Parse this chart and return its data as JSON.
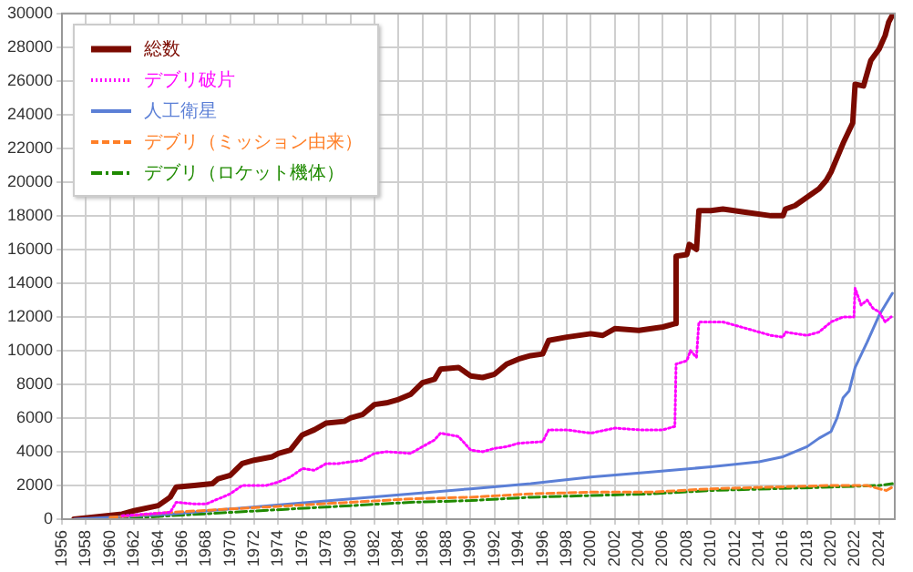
{
  "chart_data": {
    "type": "line",
    "xlim": [
      1956,
      2025.3
    ],
    "ylim": [
      0,
      30000
    ],
    "xticks": [
      1956,
      1958,
      1960,
      1962,
      1964,
      1966,
      1968,
      1970,
      1972,
      1974,
      1976,
      1978,
      1980,
      1982,
      1984,
      1986,
      1988,
      1990,
      1992,
      1994,
      1996,
      1998,
      2000,
      2002,
      2004,
      2006,
      2008,
      2010,
      2012,
      2014,
      2016,
      2018,
      2020,
      2022,
      2024
    ],
    "yticks": [
      0,
      2000,
      4000,
      6000,
      8000,
      10000,
      12000,
      14000,
      16000,
      18000,
      20000,
      22000,
      24000,
      26000,
      28000,
      30000
    ],
    "grid": true,
    "legend": "top left",
    "series": [
      {
        "name": "総数",
        "color": "#7b0a00",
        "line_style": "solid",
        "x": [
          1957,
          1961,
          1962,
          1964,
          1965,
          1965.5,
          1967,
          1968.5,
          1969,
          1970,
          1971,
          1972,
          1973.5,
          1974,
          1975,
          1976,
          1977,
          1978,
          1979.5,
          1980,
          1981,
          1982,
          1983,
          1984,
          1985,
          1986,
          1987,
          1987.5,
          1989,
          1990,
          1991,
          1992,
          1993,
          1994,
          1995,
          1996,
          1996.5,
          1998,
          2000,
          2001,
          2002,
          2004,
          2006,
          2007,
          2007.1,
          2008,
          2008.2,
          2008.8,
          2009,
          2010,
          2011,
          2013,
          2015,
          2016,
          2016.2,
          2017,
          2018,
          2019,
          2019.6,
          2020,
          2021,
          2021.8,
          2022,
          2022.7,
          2023.3,
          2024,
          2024.5,
          2024.8,
          2025.1
        ],
        "values": [
          0,
          300,
          500,
          800,
          1300,
          1900,
          2000,
          2100,
          2400,
          2600,
          3300,
          3500,
          3700,
          3900,
          4100,
          5000,
          5300,
          5700,
          5800,
          6000,
          6200,
          6800,
          6900,
          7100,
          7400,
          8100,
          8300,
          8900,
          9000,
          8500,
          8400,
          8600,
          9200,
          9500,
          9700,
          9800,
          10600,
          10800,
          11000,
          10900,
          11300,
          11200,
          11400,
          11600,
          15600,
          15700,
          16300,
          16000,
          18300,
          18300,
          18400,
          18200,
          18000,
          18000,
          18400,
          18600,
          19100,
          19600,
          20100,
          20600,
          22300,
          23500,
          25800,
          25700,
          27200,
          27900,
          28700,
          29500,
          29900
        ]
      },
      {
        "name": "デブリ破片",
        "color": "#ff00ff",
        "line_style": "dotted",
        "x": [
          1961,
          1965,
          1965.5,
          1967,
          1968,
          1969,
          1970,
          1971,
          1973,
          1974,
          1975,
          1976,
          1977,
          1978,
          1979,
          1980,
          1981,
          1982,
          1983,
          1985,
          1986,
          1987,
          1987.5,
          1989,
          1990,
          1991,
          1992,
          1993,
          1994,
          1996,
          1996.5,
          1998,
          2000,
          2002,
          2004,
          2006,
          2007,
          2007.1,
          2008,
          2008.3,
          2008.8,
          2009,
          2011,
          2013,
          2015,
          2016,
          2016.2,
          2018,
          2019,
          2020,
          2021,
          2021.9,
          2022,
          2022.5,
          2023,
          2023.5,
          2024,
          2024.5,
          2025
        ],
        "values": [
          200,
          400,
          1000,
          900,
          900,
          1200,
          1500,
          2000,
          2000,
          2200,
          2500,
          3000,
          2900,
          3300,
          3300,
          3400,
          3500,
          3900,
          4000,
          3900,
          4300,
          4700,
          5100,
          4900,
          4100,
          4000,
          4200,
          4300,
          4500,
          4600,
          5300,
          5300,
          5100,
          5400,
          5300,
          5300,
          5500,
          9200,
          9400,
          10000,
          9600,
          11700,
          11700,
          11300,
          10900,
          10800,
          11100,
          10900,
          11100,
          11700,
          12000,
          12000,
          13700,
          12700,
          13000,
          12500,
          12300,
          11700,
          12000
        ]
      },
      {
        "name": "人工衛星",
        "color": "#5b7fd6",
        "line_style": "solid",
        "x": [
          1957,
          1965,
          1970,
          1975,
          1980,
          1985,
          1990,
          1995,
          2000,
          2005,
          2010,
          2014,
          2016,
          2018,
          2019,
          2020,
          2020.5,
          2021,
          2021.5,
          2022,
          2023,
          2024,
          2025.1
        ],
        "values": [
          0,
          300,
          600,
          900,
          1200,
          1500,
          1800,
          2100,
          2500,
          2800,
          3100,
          3400,
          3700,
          4300,
          4800,
          5200,
          6000,
          7200,
          7600,
          9000,
          10500,
          12100,
          13400
        ]
      },
      {
        "name": "デブリ（ミッション由来）",
        "color": "#ff7f27",
        "line_style": "dashed",
        "x": [
          1960,
          1965,
          1970,
          1975,
          1980,
          1985,
          1990,
          1995,
          2000,
          2005,
          2010,
          2015,
          2020,
          2023,
          2024,
          2024.6,
          2025.1
        ],
        "values": [
          100,
          400,
          600,
          800,
          1000,
          1200,
          1300,
          1500,
          1600,
          1600,
          1800,
          1900,
          2000,
          2000,
          1800,
          1700,
          1900
        ]
      },
      {
        "name": "デブリ（ロケット機体）",
        "color": "#1f8a00",
        "line_style": "dashdot",
        "x": [
          1960,
          1965,
          1970,
          1975,
          1980,
          1985,
          1990,
          1995,
          2000,
          2005,
          2010,
          2015,
          2020,
          2024,
          2025.1
        ],
        "values": [
          0,
          200,
          400,
          600,
          800,
          1000,
          1100,
          1300,
          1400,
          1500,
          1700,
          1800,
          1900,
          2000,
          2100
        ]
      }
    ]
  }
}
